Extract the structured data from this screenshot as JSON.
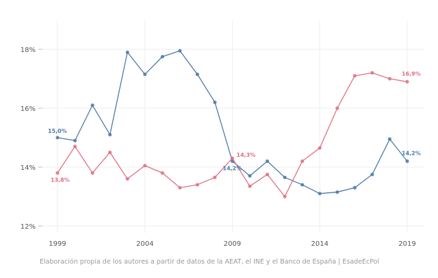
{
  "chart_data": {
    "type": "line",
    "title": "",
    "xlabel": "",
    "ylabel": "",
    "x": [
      1999,
      2000,
      2001,
      2002,
      2003,
      2004,
      2005,
      2006,
      2007,
      2008,
      2009,
      2010,
      2011,
      2012,
      2013,
      2014,
      2015,
      2016,
      2017,
      2018,
      2019
    ],
    "xticks": [
      "1999",
      "2004",
      "2009",
      "2014",
      "2019"
    ],
    "yticks": [
      "12%",
      "14%",
      "16%",
      "18%"
    ],
    "ylim": [
      11.7,
      19.2
    ],
    "xlim": [
      1998,
      2020
    ],
    "grid": true,
    "series": [
      {
        "color": "#4f79a8",
        "values": [
          15.0,
          14.9,
          16.1,
          15.1,
          17.9,
          17.15,
          17.75,
          17.95,
          17.15,
          16.2,
          14.2,
          13.7,
          14.2,
          13.65,
          13.4,
          13.1,
          13.15,
          13.3,
          13.75,
          14.95,
          14.2
        ]
      },
      {
        "color": "#e07080",
        "values": [
          13.8,
          14.7,
          13.8,
          14.5,
          13.6,
          14.05,
          13.8,
          13.3,
          13.4,
          13.65,
          14.3,
          13.35,
          13.75,
          13.0,
          14.2,
          14.65,
          16.0,
          17.1,
          17.2,
          17.0,
          16.9
        ]
      }
    ],
    "annotations": [
      {
        "series": 0,
        "x": 1999,
        "text": "15,0%"
      },
      {
        "series": 1,
        "x": 1999,
        "text": "13,8%"
      },
      {
        "series": 0,
        "x": 2009,
        "text": "14,2%"
      },
      {
        "series": 1,
        "x": 2009,
        "text": "14,3%"
      },
      {
        "series": 1,
        "x": 2019,
        "text": "16,9%"
      },
      {
        "series": 0,
        "x": 2019,
        "text": "14,2%"
      }
    ]
  },
  "caption": "Elaboración propia de los autores a partir de datos de la AEAT, el INE y el Banco de España | EsadeEcPol"
}
